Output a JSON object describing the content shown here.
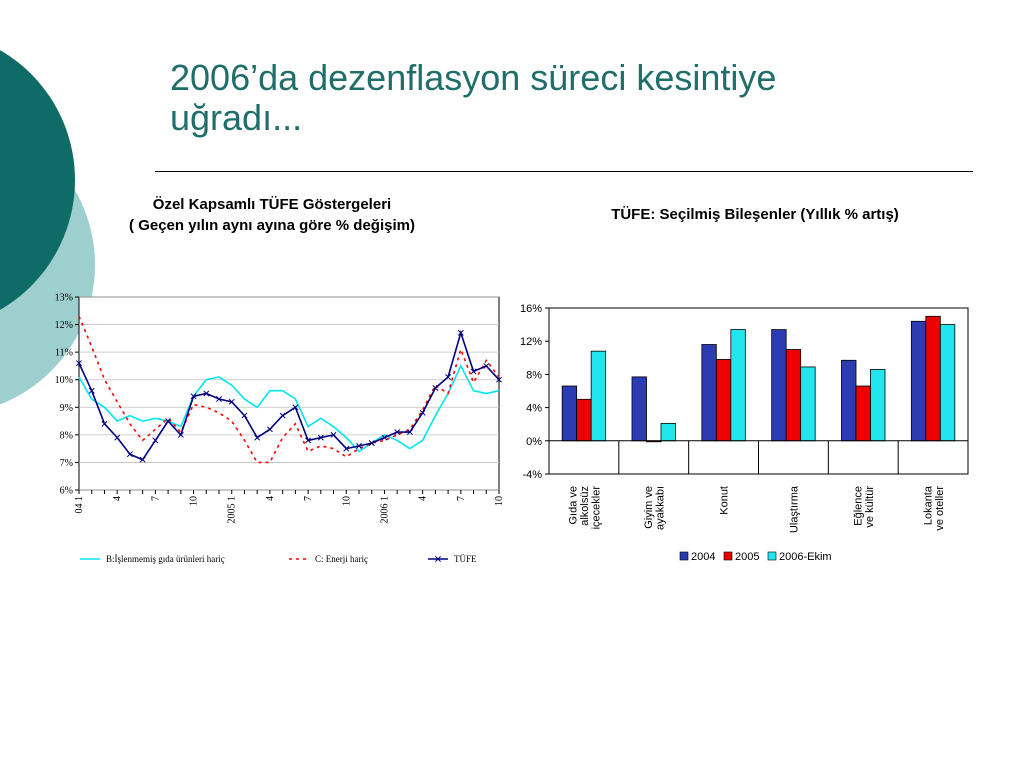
{
  "slide": {
    "title_line1": "2006’da dezenflasyon süreci kesintiye",
    "title_line2": "uğradı...",
    "accent_color": "#1f6e6a",
    "circle_color_dark": "#0f6b66",
    "circle_color_light": "#9ecfcf"
  },
  "chart_data": [
    {
      "type": "line",
      "title": "Özel Kapsamlı TÜFE Göstergeleri",
      "subtitle": "( Geçen yılın aynı ayına göre % değişim)",
      "ylim": [
        6,
        13
      ],
      "y_ticks": [
        "6%",
        "7%",
        "8%",
        "9%",
        "10%",
        "11%",
        "12%",
        "13%"
      ],
      "x_tick_labels": [
        {
          "i": 0,
          "label": "04 1"
        },
        {
          "i": 3,
          "label": "4"
        },
        {
          "i": 6,
          "label": "7"
        },
        {
          "i": 9,
          "label": "10"
        },
        {
          "i": 12,
          "label": "2005 1"
        },
        {
          "i": 15,
          "label": "4"
        },
        {
          "i": 18,
          "label": "7"
        },
        {
          "i": 21,
          "label": "10"
        },
        {
          "i": 24,
          "label": "2006 1"
        },
        {
          "i": 27,
          "label": "4"
        },
        {
          "i": 30,
          "label": "7"
        },
        {
          "i": 33,
          "label": "10"
        }
      ],
      "n_points": 34,
      "legend_position": "bottom",
      "series": [
        {
          "name": "B:İşlenmemiş gıda ürünleri hariç",
          "color": "#00e5ee",
          "style": "solid",
          "values": [
            10.1,
            9.3,
            9.0,
            8.5,
            8.7,
            8.5,
            8.6,
            8.5,
            8.3,
            9.4,
            10.0,
            10.1,
            9.8,
            9.3,
            9.0,
            9.6,
            9.6,
            9.3,
            8.3,
            8.6,
            8.3,
            7.9,
            7.4,
            7.7,
            8.0,
            7.8,
            7.5,
            7.8,
            8.7,
            9.5,
            10.5,
            9.6,
            9.5,
            9.6
          ]
        },
        {
          "name": "C: Enerji hariç",
          "color": "#ff0000",
          "style": "dashed",
          "values": [
            12.3,
            11.2,
            10.0,
            9.2,
            8.4,
            7.8,
            8.2,
            8.6,
            8.1,
            9.1,
            9.0,
            8.8,
            8.5,
            7.8,
            7.0,
            7.0,
            7.9,
            8.4,
            7.4,
            7.6,
            7.5,
            7.2,
            7.5,
            7.7,
            7.8,
            8.0,
            8.2,
            8.9,
            9.8,
            9.5,
            11.1,
            9.9,
            10.7,
            10.1
          ]
        },
        {
          "name": "TÜFE",
          "color": "#000080",
          "style": "solid",
          "values": [
            10.6,
            9.6,
            8.4,
            7.9,
            7.3,
            7.1,
            7.8,
            8.5,
            8.0,
            9.4,
            9.5,
            9.3,
            9.2,
            8.7,
            7.9,
            8.2,
            8.7,
            9.0,
            7.8,
            7.9,
            8.0,
            7.5,
            7.6,
            7.7,
            7.9,
            8.1,
            8.1,
            8.8,
            9.7,
            10.1,
            11.7,
            10.3,
            10.5,
            10.0
          ]
        }
      ]
    },
    {
      "type": "bar",
      "title": "TÜFE: Seçilmiş Bileşenler (Yıllık % artış)",
      "ylim": [
        -4,
        16
      ],
      "y_ticks": [
        "-4%",
        "0%",
        "4%",
        "8%",
        "12%",
        "16%"
      ],
      "categories": [
        "Gıda ve\nalkolsüz\niçecekler",
        "Giyim ve\nayakkabı",
        "Konut",
        "Ulaştırma",
        "Eğlence\nve kültür",
        "Lokanta\nve oteller"
      ],
      "legend_position": "bottom",
      "series": [
        {
          "name": "2004",
          "color": "#2b3bb2",
          "values": [
            6.6,
            7.7,
            11.6,
            13.4,
            9.7,
            14.4
          ]
        },
        {
          "name": "2005",
          "color": "#ee0000",
          "values": [
            5.0,
            -0.1,
            9.8,
            11.0,
            6.6,
            15.0
          ]
        },
        {
          "name": "2006-Ekim",
          "color": "#22e6ee",
          "values": [
            10.8,
            2.1,
            13.4,
            8.9,
            8.6,
            14.0
          ]
        }
      ]
    }
  ]
}
